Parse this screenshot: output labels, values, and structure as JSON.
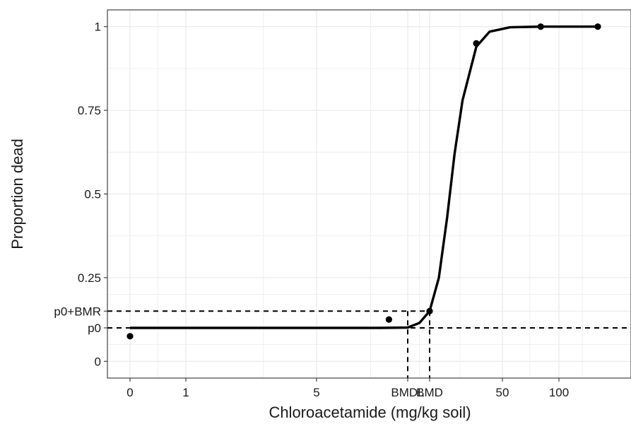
{
  "chart_data": {
    "type": "line",
    "title": "",
    "xlabel": "Chloroacetamide (mg/kg soil)",
    "ylabel": "Proportion dead",
    "x_scale": "log (pseudo-log, 0 shown at left)",
    "x_ticks": [
      {
        "value": 0,
        "label": "0"
      },
      {
        "value": 1,
        "label": "1"
      },
      {
        "value": 5,
        "label": "5"
      },
      {
        "value": 13.5,
        "label": "BMDL"
      },
      {
        "value": 18.5,
        "label": "BMD"
      },
      {
        "value": 50,
        "label": "50"
      },
      {
        "value": 100,
        "label": "100"
      }
    ],
    "y_ticks": [
      {
        "value": 0,
        "label": "0"
      },
      {
        "value": 0.1,
        "label": "p0"
      },
      {
        "value": 0.15,
        "label": "p0+BMR"
      },
      {
        "value": 0.25,
        "label": "0.25"
      },
      {
        "value": 0.5,
        "label": "0.5"
      },
      {
        "value": 0.75,
        "label": "0.75"
      },
      {
        "value": 1,
        "label": "1"
      }
    ],
    "ylim": [
      -0.05,
      1.05
    ],
    "observed_points": [
      {
        "x": 0,
        "y": 0.075
      },
      {
        "x": 11,
        "y": 0.125
      },
      {
        "x": 18.5,
        "y": 0.15
      },
      {
        "x": 35,
        "y": 0.95
      },
      {
        "x": 80,
        "y": 1.0
      },
      {
        "x": 175,
        "y": 1.0
      }
    ],
    "fitted_curve": {
      "description": "S-shaped dose-response",
      "p0": 0.1,
      "points": [
        {
          "x": 0,
          "y": 0.1
        },
        {
          "x": 1,
          "y": 0.1
        },
        {
          "x": 5,
          "y": 0.1
        },
        {
          "x": 10,
          "y": 0.1
        },
        {
          "x": 13.5,
          "y": 0.101
        },
        {
          "x": 16,
          "y": 0.115
        },
        {
          "x": 18.5,
          "y": 0.15
        },
        {
          "x": 21,
          "y": 0.25
        },
        {
          "x": 23.5,
          "y": 0.43
        },
        {
          "x": 26,
          "y": 0.62
        },
        {
          "x": 29,
          "y": 0.78
        },
        {
          "x": 35,
          "y": 0.94
        },
        {
          "x": 42,
          "y": 0.985
        },
        {
          "x": 55,
          "y": 0.998
        },
        {
          "x": 80,
          "y": 1.0
        },
        {
          "x": 175,
          "y": 1.0
        }
      ]
    },
    "reference_lines": [
      {
        "axis": "y",
        "value": 0.1,
        "label": "p0",
        "style": "dashed"
      },
      {
        "axis": "y",
        "value": 0.15,
        "label": "p0+BMR",
        "style": "dashed"
      },
      {
        "axis": "x",
        "value": 13.5,
        "label": "BMDL",
        "style": "dashed"
      },
      {
        "axis": "x",
        "value": 18.5,
        "label": "BMD",
        "style": "dashed"
      }
    ],
    "grid": true,
    "legend": "none"
  },
  "colors": {
    "background": "#ffffff",
    "grid": "#ebebeb",
    "panel_border": "#333333",
    "curve": "#000000",
    "points": "#000000"
  }
}
